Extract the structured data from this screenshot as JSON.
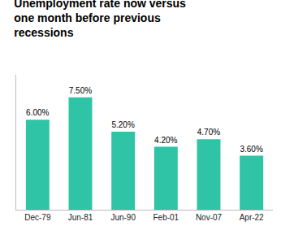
{
  "chart_data": {
    "type": "bar",
    "title": "Unemployment rate now versus\none month before previous\nrecessions",
    "categories": [
      "Dec-79",
      "Jun-81",
      "Jun-90",
      "Feb-01",
      "Nov-07",
      "Apr-22"
    ],
    "values": [
      6.0,
      7.5,
      5.2,
      4.2,
      4.7,
      3.6
    ],
    "value_labels": [
      "6.00%",
      "7.50%",
      "5.20%",
      "4.20%",
      "4.70%",
      "3.60%"
    ],
    "data_labels": true,
    "color": "#2EC4A5",
    "ylim": [
      0,
      9.0
    ],
    "grid": false,
    "tick_labels": "x"
  }
}
